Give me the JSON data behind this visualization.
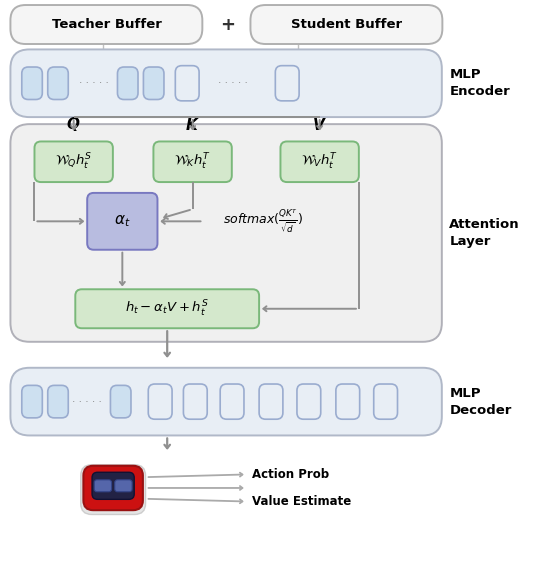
{
  "fig_width": 5.42,
  "fig_height": 5.78,
  "bg_color": "#ffffff",
  "teacher_buffer_text": "Teacher Buffer",
  "student_buffer_text": "Student Buffer",
  "plus_text": "+",
  "mlp_encoder_text": "MLP\nEncoder",
  "attention_layer_text": "Attention\nLayer",
  "mlp_decoder_text": "MLP\nDecoder",
  "Q_text": "$\\boldsymbol{Q}$",
  "K_text": "$\\boldsymbol{K}$",
  "V_text": "$\\boldsymbol{V}$",
  "wq_text": "$\\mathcal{W}_Q h_t^S$",
  "wk_text": "$\\mathcal{W}_K h_t^T$",
  "wv_text": "$\\mathcal{W}_V h_t^T$",
  "alpha_text": "$\\alpha_t$",
  "softmax_text": "$softmax(\\frac{QK^T}{\\sqrt{d}})$",
  "output_text": "$h_t - \\alpha_t V + h_t^S$",
  "action_prob_text": "Action Prob",
  "value_estimate_text": "Value Estimate",
  "outer_bg_color": "#f5f5f5",
  "outer_edge_color": "#c0c0c0",
  "encoder_bg": "#e8eef5",
  "encoder_edge": "#b0b8c8",
  "attention_bg": "#f0f0f0",
  "attention_edge": "#b0b0b8",
  "decoder_bg": "#e8eef5",
  "decoder_edge": "#b0b8c8",
  "green_face": "#d4e8cc",
  "green_edge": "#7ab87a",
  "blue_face": "#b8bce0",
  "blue_edge": "#7878c0",
  "node_filled_face": "#cde0f0",
  "node_filled_edge": "#9aaccf",
  "node_empty_face": "#e8eef5",
  "node_empty_edge": "#9aaccf",
  "arrow_color": "#909090",
  "buf_face": "#f5f5f5",
  "buf_edge": "#b0b0b0",
  "dot_color": "#888888",
  "label_color": "#000000"
}
